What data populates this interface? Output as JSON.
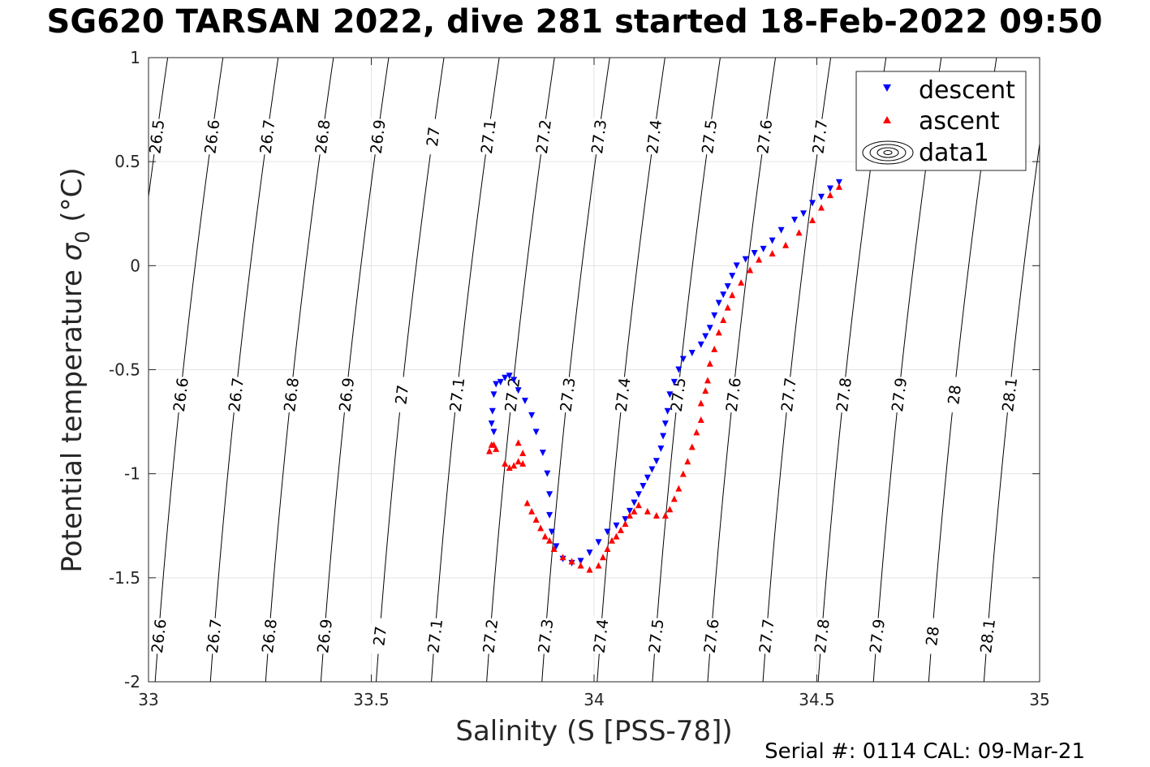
{
  "title": "SG620 TARSAN 2022, dive 281 started 18-Feb-2022 09:50",
  "footer": "Serial #: 0114  CAL: 09-Mar-21",
  "chart_data": {
    "type": "scatter",
    "xlabel": "Salinity (S [PSS-78])",
    "ylabel_text": "Potential temperature ",
    "ylabel_symbol": "σ",
    "ylabel_sub": "0",
    "ylabel_unit": " (°C)",
    "xlim": [
      33,
      35
    ],
    "ylim": [
      -2,
      1
    ],
    "x_ticks": [
      "33",
      "33.5",
      "34",
      "34.5",
      "35"
    ],
    "y_ticks": [
      "1",
      "0.5",
      "0",
      "-0.5",
      "-1",
      "-1.5",
      "-2"
    ],
    "grid": true,
    "legend_position": "top-right",
    "legend": [
      "descent",
      "ascent",
      "data1"
    ],
    "density_contours": {
      "name": "data1",
      "levels": [
        26.5,
        26.6,
        26.7,
        26.8,
        26.9,
        27.0,
        27.1,
        27.2,
        27.3,
        27.4,
        27.5,
        27.6,
        27.7,
        27.8,
        27.9,
        28.0,
        28.1
      ],
      "labels": [
        "26.5",
        "26.6",
        "26.7",
        "26.8",
        "26.9",
        "27",
        "27.1",
        "27.2",
        "27.3",
        "27.4",
        "27.5",
        "27.6",
        "27.7",
        "27.8",
        "27.9",
        "28",
        "28.1"
      ]
    },
    "series": [
      {
        "name": "descent",
        "color": "#0000ff",
        "marker": "triangle-down",
        "points": [
          [
            34.55,
            0.4
          ],
          [
            34.53,
            0.37
          ],
          [
            34.51,
            0.33
          ],
          [
            34.49,
            0.3
          ],
          [
            34.47,
            0.25
          ],
          [
            34.45,
            0.22
          ],
          [
            34.42,
            0.17
          ],
          [
            34.4,
            0.12
          ],
          [
            34.38,
            0.08
          ],
          [
            34.36,
            0.06
          ],
          [
            34.34,
            0.03
          ],
          [
            34.32,
            0.0
          ],
          [
            34.31,
            -0.05
          ],
          [
            34.3,
            -0.1
          ],
          [
            34.29,
            -0.14
          ],
          [
            34.28,
            -0.18
          ],
          [
            34.27,
            -0.24
          ],
          [
            34.26,
            -0.3
          ],
          [
            34.25,
            -0.34
          ],
          [
            34.24,
            -0.38
          ],
          [
            34.22,
            -0.42
          ],
          [
            34.2,
            -0.45
          ],
          [
            34.19,
            -0.5
          ],
          [
            34.18,
            -0.56
          ],
          [
            34.17,
            -0.62
          ],
          [
            34.165,
            -0.7
          ],
          [
            34.16,
            -0.76
          ],
          [
            34.155,
            -0.82
          ],
          [
            34.15,
            -0.88
          ],
          [
            34.14,
            -0.94
          ],
          [
            34.13,
            -0.98
          ],
          [
            34.12,
            -1.02
          ],
          [
            34.11,
            -1.06
          ],
          [
            34.1,
            -1.1
          ],
          [
            34.09,
            -1.14
          ],
          [
            34.08,
            -1.18
          ],
          [
            34.07,
            -1.22
          ],
          [
            34.05,
            -1.25
          ],
          [
            34.03,
            -1.28
          ],
          [
            34.01,
            -1.33
          ],
          [
            33.99,
            -1.38
          ],
          [
            33.97,
            -1.42
          ],
          [
            33.95,
            -1.43
          ],
          [
            33.93,
            -1.41
          ],
          [
            33.915,
            -1.35
          ],
          [
            33.905,
            -1.28
          ],
          [
            33.9,
            -1.2
          ],
          [
            33.9,
            -1.1
          ],
          [
            33.895,
            -1.0
          ],
          [
            33.885,
            -0.9
          ],
          [
            33.87,
            -0.8
          ],
          [
            33.86,
            -0.72
          ],
          [
            33.845,
            -0.65
          ],
          [
            33.83,
            -0.6
          ],
          [
            33.82,
            -0.55
          ],
          [
            33.81,
            -0.53
          ],
          [
            33.8,
            -0.54
          ],
          [
            33.79,
            -0.56
          ],
          [
            33.78,
            -0.57
          ],
          [
            33.775,
            -0.62
          ],
          [
            33.772,
            -0.7
          ],
          [
            33.77,
            -0.76
          ],
          [
            33.775,
            -0.8
          ]
        ]
      },
      {
        "name": "ascent",
        "color": "#ff0000",
        "marker": "triangle-up",
        "points": [
          [
            34.55,
            0.38
          ],
          [
            34.53,
            0.34
          ],
          [
            34.51,
            0.28
          ],
          [
            34.49,
            0.22
          ],
          [
            34.46,
            0.16
          ],
          [
            34.43,
            0.1
          ],
          [
            34.4,
            0.06
          ],
          [
            34.37,
            0.03
          ],
          [
            34.35,
            -0.02
          ],
          [
            34.33,
            -0.08
          ],
          [
            34.31,
            -0.14
          ],
          [
            34.3,
            -0.2
          ],
          [
            34.29,
            -0.26
          ],
          [
            34.28,
            -0.32
          ],
          [
            34.27,
            -0.4
          ],
          [
            34.26,
            -0.47
          ],
          [
            34.255,
            -0.55
          ],
          [
            34.25,
            -0.6
          ],
          [
            34.24,
            -0.66
          ],
          [
            34.24,
            -0.74
          ],
          [
            34.23,
            -0.8
          ],
          [
            34.22,
            -0.87
          ],
          [
            34.21,
            -0.94
          ],
          [
            34.2,
            -1.0
          ],
          [
            34.19,
            -1.07
          ],
          [
            34.18,
            -1.12
          ],
          [
            34.17,
            -1.17
          ],
          [
            34.16,
            -1.2
          ],
          [
            34.14,
            -1.2
          ],
          [
            34.12,
            -1.18
          ],
          [
            34.1,
            -1.15
          ],
          [
            34.09,
            -1.18
          ],
          [
            34.08,
            -1.2
          ],
          [
            34.07,
            -1.24
          ],
          [
            34.06,
            -1.27
          ],
          [
            34.05,
            -1.3
          ],
          [
            34.04,
            -1.32
          ],
          [
            34.03,
            -1.36
          ],
          [
            34.02,
            -1.4
          ],
          [
            34.01,
            -1.44
          ],
          [
            33.99,
            -1.46
          ],
          [
            33.97,
            -1.44
          ],
          [
            33.95,
            -1.42
          ],
          [
            33.93,
            -1.4
          ],
          [
            33.91,
            -1.36
          ],
          [
            33.9,
            -1.32
          ],
          [
            33.89,
            -1.3
          ],
          [
            33.88,
            -1.26
          ],
          [
            33.87,
            -1.22
          ],
          [
            33.86,
            -1.18
          ],
          [
            33.85,
            -1.14
          ],
          [
            33.84,
            -0.95
          ],
          [
            33.83,
            -0.94
          ],
          [
            33.82,
            -0.96
          ],
          [
            33.81,
            -0.97
          ],
          [
            33.8,
            -0.95
          ],
          [
            33.78,
            -0.88
          ],
          [
            33.77,
            -0.86
          ],
          [
            33.765,
            -0.89
          ],
          [
            33.775,
            -0.86
          ],
          [
            33.83,
            -0.85
          ],
          [
            33.84,
            -0.9
          ]
        ]
      }
    ]
  }
}
